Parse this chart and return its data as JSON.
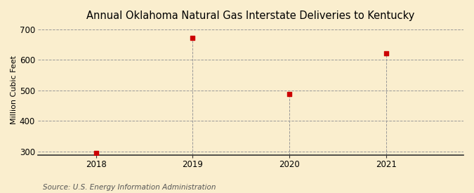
{
  "title": "Annual Oklahoma Natural Gas Interstate Deliveries to Kentucky",
  "ylabel": "Million Cubic Feet",
  "source": "Source: U.S. Energy Information Administration",
  "x": [
    2018,
    2019,
    2020,
    2021
  ],
  "y": [
    295,
    672,
    487,
    621
  ],
  "marker_color": "#cc0000",
  "marker_size": 18,
  "background_color": "#faeece",
  "plot_background_color": "#faeece",
  "grid_color": "#999999",
  "xlim": [
    2017.4,
    2021.8
  ],
  "ylim": [
    288,
    715
  ],
  "yticks": [
    300,
    400,
    500,
    600,
    700
  ],
  "xticks": [
    2018,
    2019,
    2020,
    2021
  ],
  "title_fontsize": 10.5,
  "label_fontsize": 8,
  "tick_fontsize": 8.5,
  "source_fontsize": 7.5
}
